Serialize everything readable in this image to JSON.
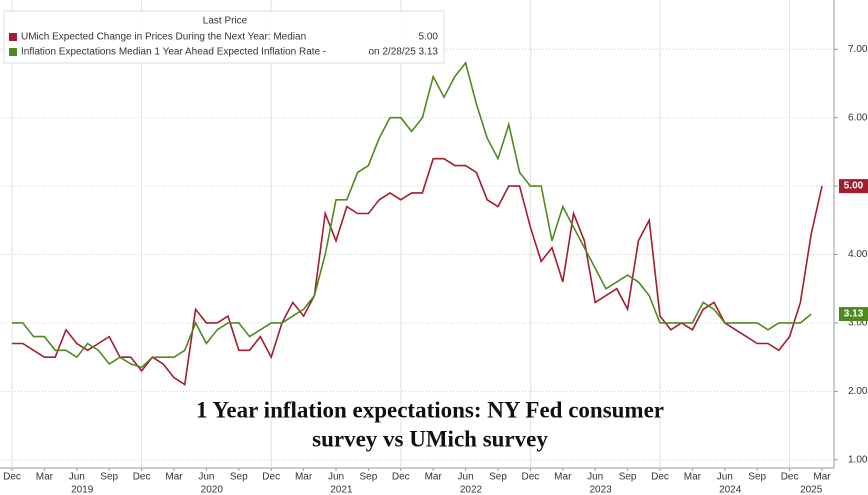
{
  "chart_data": {
    "type": "line",
    "legend_header": "Last Price",
    "annotation": [
      "1 Year inflation expectations: NY Fed consumer",
      "survey vs UMich survey"
    ],
    "categories": [
      "2018-12",
      "2019-01",
      "2019-02",
      "2019-03",
      "2019-04",
      "2019-05",
      "2019-06",
      "2019-07",
      "2019-08",
      "2019-09",
      "2019-10",
      "2019-11",
      "2019-12",
      "2020-01",
      "2020-02",
      "2020-03",
      "2020-04",
      "2020-05",
      "2020-06",
      "2020-07",
      "2020-08",
      "2020-09",
      "2020-10",
      "2020-11",
      "2020-12",
      "2021-01",
      "2021-02",
      "2021-03",
      "2021-04",
      "2021-05",
      "2021-06",
      "2021-07",
      "2021-08",
      "2021-09",
      "2021-10",
      "2021-11",
      "2021-12",
      "2022-01",
      "2022-02",
      "2022-03",
      "2022-04",
      "2022-05",
      "2022-06",
      "2022-07",
      "2022-08",
      "2022-09",
      "2022-10",
      "2022-11",
      "2022-12",
      "2023-01",
      "2023-02",
      "2023-03",
      "2023-04",
      "2023-05",
      "2023-06",
      "2023-07",
      "2023-08",
      "2023-09",
      "2023-10",
      "2023-11",
      "2023-12",
      "2024-01",
      "2024-02",
      "2024-03",
      "2024-04",
      "2024-05",
      "2024-06",
      "2024-07",
      "2024-08",
      "2024-09",
      "2024-10",
      "2024-11",
      "2024-12",
      "2025-01",
      "2025-02",
      "2025-03"
    ],
    "xticks": [
      {
        "value": "2018-12",
        "label": "Dec"
      },
      {
        "value": "2019-03",
        "label": "Mar"
      },
      {
        "value": "2019-06",
        "label": "Jun"
      },
      {
        "value": "2019-09",
        "label": "Sep"
      },
      {
        "value": "2019-12",
        "label": "Dec"
      },
      {
        "value": "2020-03",
        "label": "Mar"
      },
      {
        "value": "2020-06",
        "label": "Jun"
      },
      {
        "value": "2020-09",
        "label": "Sep"
      },
      {
        "value": "2020-12",
        "label": "Dec"
      },
      {
        "value": "2021-03",
        "label": "Mar"
      },
      {
        "value": "2021-06",
        "label": "Jun"
      },
      {
        "value": "2021-09",
        "label": "Sep"
      },
      {
        "value": "2021-12",
        "label": "Dec"
      },
      {
        "value": "2022-03",
        "label": "Mar"
      },
      {
        "value": "2022-06",
        "label": "Jun"
      },
      {
        "value": "2022-09",
        "label": "Sep"
      },
      {
        "value": "2022-12",
        "label": "Dec"
      },
      {
        "value": "2023-03",
        "label": "Mar"
      },
      {
        "value": "2023-06",
        "label": "Jun"
      },
      {
        "value": "2023-09",
        "label": "Sep"
      },
      {
        "value": "2023-12",
        "label": "Dec"
      },
      {
        "value": "2024-03",
        "label": "Mar"
      },
      {
        "value": "2024-06",
        "label": "Jun"
      },
      {
        "value": "2024-09",
        "label": "Sep"
      },
      {
        "value": "2024-12",
        "label": "Dec"
      },
      {
        "value": "2025-03",
        "label": "Mar"
      }
    ],
    "year_labels": [
      "2019",
      "2020",
      "2021",
      "2022",
      "2023",
      "2024",
      "2025"
    ],
    "ylim": [
      0.88,
      7.72
    ],
    "yticks": [
      {
        "value": 1,
        "label": "1.00"
      },
      {
        "value": 2,
        "label": "2.00"
      },
      {
        "value": 3,
        "label": "3.00"
      },
      {
        "value": 4,
        "label": "4.00"
      },
      {
        "value": 5,
        "label": "5.00"
      },
      {
        "value": 6,
        "label": "6.00"
      },
      {
        "value": 7,
        "label": "7.00"
      }
    ],
    "grid": true,
    "series": [
      {
        "name": "UMich Expected Change in Prices During the Next Year: Median",
        "color": "#a31d2e",
        "legend_value": "5.00",
        "end_label": "5.00",
        "values": [
          2.7,
          2.7,
          2.6,
          2.5,
          2.5,
          2.9,
          2.7,
          2.6,
          2.7,
          2.8,
          2.5,
          2.5,
          2.3,
          2.5,
          2.4,
          2.2,
          2.1,
          3.2,
          3.0,
          3.0,
          3.1,
          2.6,
          2.6,
          2.8,
          2.5,
          3.0,
          3.3,
          3.1,
          3.4,
          4.6,
          4.2,
          4.7,
          4.6,
          4.6,
          4.8,
          4.9,
          4.8,
          4.9,
          4.9,
          5.4,
          5.4,
          5.3,
          5.3,
          5.2,
          4.8,
          4.7,
          5.0,
          5.0,
          4.4,
          3.9,
          4.1,
          3.6,
          4.6,
          4.2,
          3.3,
          3.4,
          3.5,
          3.2,
          4.2,
          4.5,
          3.1,
          2.9,
          3.0,
          2.9,
          3.2,
          3.3,
          3.0,
          2.9,
          2.8,
          2.7,
          2.7,
          2.6,
          2.8,
          3.3,
          4.3,
          5.0
        ]
      },
      {
        "name": "Inflation Expectations Median 1 Year Ahead Expected Inflation Rate -",
        "color": "#4f8a1f",
        "legend_value": "on 2/28/25 3.13",
        "end_label": "3.13",
        "values": [
          3.0,
          3.0,
          2.8,
          2.8,
          2.6,
          2.6,
          2.5,
          2.7,
          2.6,
          2.4,
          2.5,
          2.4,
          2.35,
          2.5,
          2.5,
          2.5,
          2.6,
          3.0,
          2.7,
          2.9,
          3.0,
          3.0,
          2.8,
          2.9,
          3.0,
          3.0,
          3.1,
          3.2,
          3.4,
          4.0,
          4.8,
          4.8,
          5.2,
          5.3,
          5.7,
          6.0,
          6.0,
          5.8,
          6.0,
          6.6,
          6.3,
          6.6,
          6.8,
          6.2,
          5.7,
          5.4,
          5.9,
          5.2,
          5.0,
          5.0,
          4.2,
          4.7,
          4.4,
          4.1,
          3.8,
          3.5,
          3.6,
          3.7,
          3.6,
          3.4,
          3.0,
          3.0,
          3.0,
          3.0,
          3.3,
          3.2,
          3.0,
          3.0,
          3.0,
          3.0,
          2.9,
          3.0,
          3.0,
          3.0,
          3.13,
          null
        ]
      }
    ]
  }
}
